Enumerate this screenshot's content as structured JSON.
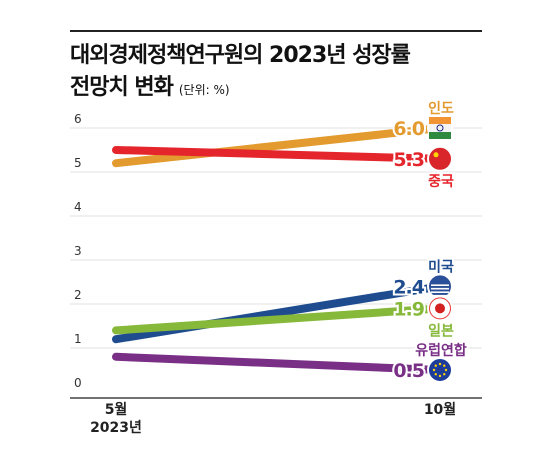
{
  "title_line1": "대외경제정책연구원의 2023년 성장률",
  "title_line2": "전망치 변화",
  "unit": "(단위: %)",
  "chart_data": {
    "type": "line",
    "title": "대외경제정책연구원의 2023년 성장률 전망치 변화",
    "unit": "(단위: %)",
    "x": [
      "5월\n2023년",
      "10월"
    ],
    "x_tick_labels": [
      [
        "5월",
        "2023년"
      ],
      [
        "10월"
      ]
    ],
    "ylim": [
      0,
      6
    ],
    "yticks": [
      "0",
      "1",
      "2",
      "3",
      "4",
      "5",
      "6"
    ],
    "grid": true,
    "series": [
      {
        "name": "인도",
        "values": [
          5.2,
          6.0
        ],
        "label": "6.0",
        "color": "#e39a2f",
        "badge_color": "#f4f4f4",
        "icon": "india-flag-icon"
      },
      {
        "name": "중국",
        "values": [
          5.5,
          5.3
        ],
        "label": "5.3",
        "color": "#e5252c",
        "badge_color": "#d8262b",
        "icon": "china-flag-icon"
      },
      {
        "name": "미국",
        "values": [
          1.2,
          2.4
        ],
        "label": "2.4",
        "color": "#1f4c8f",
        "badge_color": "#2c4f9a",
        "icon": "usa-flag-icon"
      },
      {
        "name": "일본",
        "values": [
          1.4,
          1.9
        ],
        "label": "1.9",
        "color": "#86b83a",
        "badge_color": "#e83a3a",
        "icon": "japan-flag-icon"
      },
      {
        "name": "유럽연합",
        "values": [
          0.8,
          0.5
        ],
        "label": "0.5",
        "color": "#7a2f86",
        "badge_color": "#1e3c9a",
        "icon": "eu-flag-icon"
      }
    ]
  }
}
